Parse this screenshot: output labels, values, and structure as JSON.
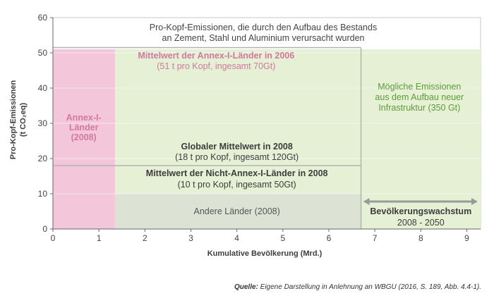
{
  "chart_data": {
    "type": "area",
    "title_lines": [
      "Pro-Kopf-Emissionen, die durch den Aufbau des Bestands",
      "an Zement, Stahl und Aluminium verursacht wurden"
    ],
    "xlabel": "Kumulative Bevölkerung (Mrd.)",
    "ylabel_lines": [
      "Pro-Kopf-Emissionen",
      "(t CO₂eq)"
    ],
    "xlim": [
      0,
      9.3
    ],
    "ylim": [
      0,
      60
    ],
    "x_ticks": [
      "0",
      "1",
      "2",
      "3",
      "4",
      "5",
      "6",
      "7",
      "8",
      "9"
    ],
    "y_ticks": [
      "0",
      "10",
      "20",
      "30",
      "40",
      "50",
      "60"
    ],
    "colors": {
      "annex": "#f3c7d9",
      "possible": "#e5f0d5",
      "other": "#dde3d4",
      "annex_text": "#d1799f",
      "possible_text": "#5e9a3c",
      "dark_text": "#3d3d3d",
      "arrow": "#999999"
    },
    "regions": [
      {
        "name": "annex",
        "x": [
          0,
          1.35
        ],
        "y": [
          0,
          51
        ]
      },
      {
        "name": "possible",
        "x": [
          1.35,
          9.3
        ],
        "y": [
          0,
          51
        ]
      },
      {
        "name": "other",
        "x": [
          1.35,
          6.7
        ],
        "y": [
          0,
          10
        ]
      }
    ],
    "lines": [
      {
        "name": "annex-mean",
        "y": 51.5,
        "x": [
          0,
          6.7
        ]
      },
      {
        "name": "global-mean",
        "y": 18,
        "x": [
          0,
          6.7
        ]
      },
      {
        "name": "population-2008",
        "x": 6.7,
        "y": [
          0,
          51.5
        ]
      }
    ],
    "annotations": {
      "annex_mean": {
        "title": "Mittelwert der Annex-I-Länder in 2006",
        "sub": "(51 t pro Kopf, ingesamt 70Gt)"
      },
      "possible": [
        "Mögliche Emissionen",
        "aus dem Aufbau neuer",
        "Infrastruktur (350 Gt)"
      ],
      "annex_label": [
        "Annex-I-",
        "Länder",
        "(2008)"
      ],
      "global_mean": {
        "title": "Globaler Mittelwert in 2008",
        "sub": "(18 t pro Kopf, ingesamt 120Gt)"
      },
      "nonannex_mean": {
        "title": "Mittelwert der Nicht-Annex-I-Länder in 2008",
        "sub": "(10 t pro Kopf, ingesamt 50Gt)"
      },
      "other": "Andere Länder (2008)",
      "growth": {
        "title": "Bevölkerungswachstum",
        "sub": "2008 - 2050",
        "x": [
          6.7,
          9.3
        ]
      }
    }
  },
  "caption": {
    "label": "Quelle:",
    "text": " Eigene Darstellung in Anlehnung an WBGU (2016, S. 189, Abb. 4.4-1)."
  }
}
